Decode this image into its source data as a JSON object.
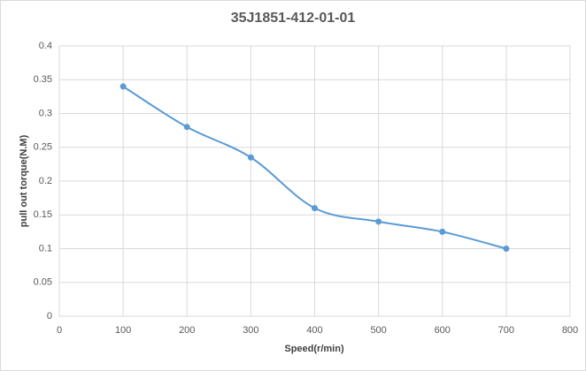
{
  "chart_data": {
    "type": "line",
    "title": "35J1851-412-01-01",
    "x_label": "Speed(r/min)",
    "y_label": "pull out torque(N.M)",
    "x": [
      100,
      200,
      300,
      400,
      500,
      600,
      700
    ],
    "series": [
      {
        "name": "pull out torque(N.M)",
        "color": "#5b9bd5",
        "values": [
          0.34,
          0.28,
          0.235,
          0.16,
          0.14,
          0.125,
          0.1
        ]
      }
    ],
    "xlim": [
      0,
      800
    ],
    "xticks": [
      0,
      100,
      200,
      300,
      400,
      500,
      600,
      700,
      800
    ],
    "ylim": [
      0,
      0.4
    ],
    "yticks": [
      0,
      0.05,
      0.1,
      0.15,
      0.2,
      0.25,
      0.3,
      0.35,
      0.4
    ],
    "grid": true,
    "smooth": true
  }
}
